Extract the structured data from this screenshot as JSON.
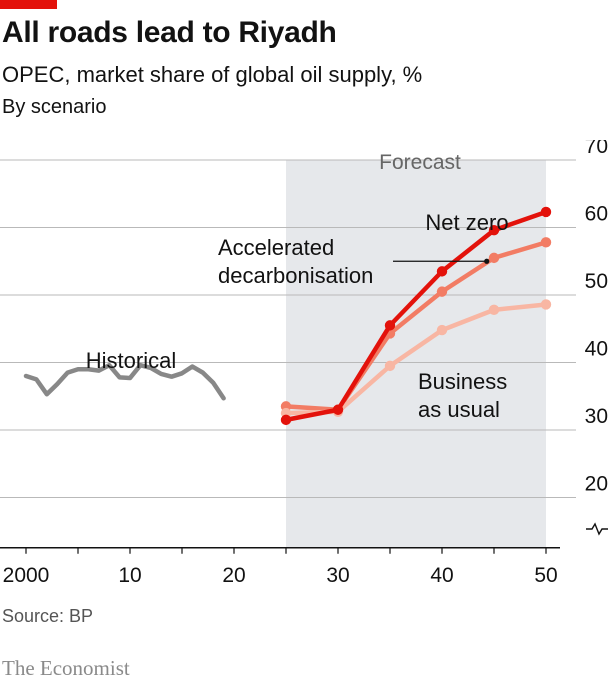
{
  "header": {
    "title": "All roads lead to Riyadh",
    "subtitle": "OPEC, market share of global oil supply, %",
    "description": "By scenario"
  },
  "footer": {
    "source": "Source: BP",
    "brand": "The Economist"
  },
  "chart_data": {
    "type": "line",
    "title": "All roads lead to Riyadh",
    "subtitle": "OPEC, market share of global oil supply, %",
    "ylim": [
      15,
      70
    ],
    "xlim": [
      1999,
      2050
    ],
    "y_ticks": [
      20,
      30,
      40,
      50,
      60,
      70
    ],
    "x_tick_labels": [
      {
        "year": 2000,
        "label": "2000"
      },
      {
        "year": 2010,
        "label": "10"
      },
      {
        "year": 2020,
        "label": "20"
      },
      {
        "year": 2030,
        "label": "30"
      },
      {
        "year": 2040,
        "label": "40"
      },
      {
        "year": 2050,
        "label": "50"
      }
    ],
    "grid": true,
    "forecast_region": {
      "label": "Forecast",
      "start": 2025,
      "end": 2050
    },
    "series": [
      {
        "name": "Historical",
        "color": "#888888",
        "x": [
          2000,
          2001,
          2002,
          2003,
          2004,
          2005,
          2006,
          2007,
          2008,
          2009,
          2010,
          2011,
          2012,
          2013,
          2014,
          2015,
          2016,
          2017,
          2018,
          2019
        ],
        "y": [
          38.0,
          37.5,
          35.3,
          36.8,
          38.5,
          39.0,
          39.0,
          38.8,
          39.6,
          37.8,
          37.7,
          39.6,
          39.2,
          38.3,
          37.9,
          38.4,
          39.4,
          38.5,
          37.0,
          34.7
        ]
      },
      {
        "name": "Accelerated decarbonisation",
        "color": "#f27c64",
        "x": [
          2025,
          2030,
          2035,
          2040,
          2045,
          2050
        ],
        "y": [
          33.5,
          33.0,
          44.3,
          50.5,
          55.5,
          57.8
        ]
      },
      {
        "name": "Business as usual",
        "color": "#f8b6a3",
        "x": [
          2025,
          2030,
          2035,
          2040,
          2045,
          2050
        ],
        "y": [
          32.5,
          32.7,
          39.5,
          44.8,
          47.8,
          48.6
        ]
      },
      {
        "name": "Net zero",
        "color": "#e3120b",
        "x": [
          2025,
          2030,
          2035,
          2040,
          2045,
          2050
        ],
        "y": [
          31.5,
          33.0,
          45.5,
          53.5,
          59.6,
          62.3
        ]
      }
    ]
  }
}
